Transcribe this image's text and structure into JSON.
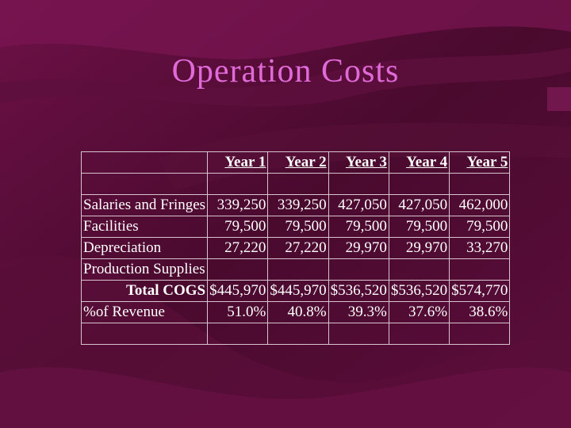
{
  "slide": {
    "title": "Operation Costs"
  },
  "table": {
    "headers": [
      "",
      "Year 1",
      "Year 2",
      "Year 3",
      "Year 4",
      "Year 5"
    ],
    "rows": [
      {
        "label": "Salaries and Fringes",
        "values": [
          "339,250",
          "339,250",
          "427,050",
          "427,050",
          "462,000"
        ]
      },
      {
        "label": "Facilities",
        "values": [
          "79,500",
          "79,500",
          "79,500",
          "79,500",
          "79,500"
        ]
      },
      {
        "label": "Depreciation",
        "values": [
          "27,220",
          "27,220",
          "29,970",
          "29,970",
          "33,270"
        ]
      },
      {
        "label": "Production Supplies",
        "values": [
          "",
          "",
          "",
          "",
          ""
        ]
      },
      {
        "label": "Total COGS",
        "values": [
          "$445,970",
          "$445,970",
          "$536,520",
          "$536,520",
          "$574,770"
        ]
      },
      {
        "label": "%of Revenue",
        "values": [
          "51.0%",
          "40.8%",
          "39.3%",
          "37.6%",
          "38.6%"
        ]
      }
    ]
  },
  "colors": {
    "background": "#4a0a2e",
    "title": "#e06ad8",
    "text": "#ffffff",
    "grid": "#d9c3cf"
  }
}
